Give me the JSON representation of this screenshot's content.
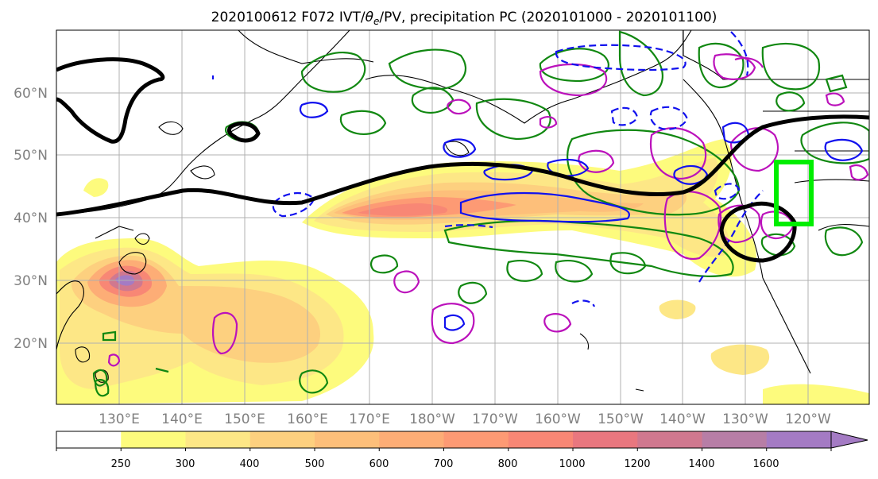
{
  "title": {
    "prefix": "2020100612 F072 IVT/",
    "theta": "θ",
    "sub": "e",
    "suffix": "/PV, precipitation PC (2020101000 - 2020101100)"
  },
  "map": {
    "lat_labels": [
      "60°N",
      "50°N",
      "40°N",
      "30°N",
      "20°N"
    ],
    "lon_labels": [
      "130°E",
      "140°E",
      "150°E",
      "160°E",
      "170°E",
      "180°W",
      "170°W",
      "160°W",
      "150°W",
      "140°W",
      "130°W",
      "120°W"
    ]
  },
  "colorbar": {
    "ticks": [
      "250",
      "300",
      "400",
      "500",
      "600",
      "700",
      "800",
      "1000",
      "1200",
      "1400",
      "1600"
    ],
    "colors": [
      "#ffffff",
      "#fdfb7d",
      "#fde786",
      "#fdd07f",
      "#fdbf7a",
      "#fdad76",
      "#fd9a74",
      "#f88775",
      "#e9777f",
      "#d0788f",
      "#b77ea6",
      "#a47bc4"
    ]
  },
  "colors": {
    "land_outline": "#000000",
    "grid": "#b0b0b0",
    "pv_line": "#000000",
    "theta_e_green": "#118811",
    "precip_magenta": "#bb11bb",
    "blue_contour": "#1111ee",
    "highlight_box": "#00ee00"
  }
}
